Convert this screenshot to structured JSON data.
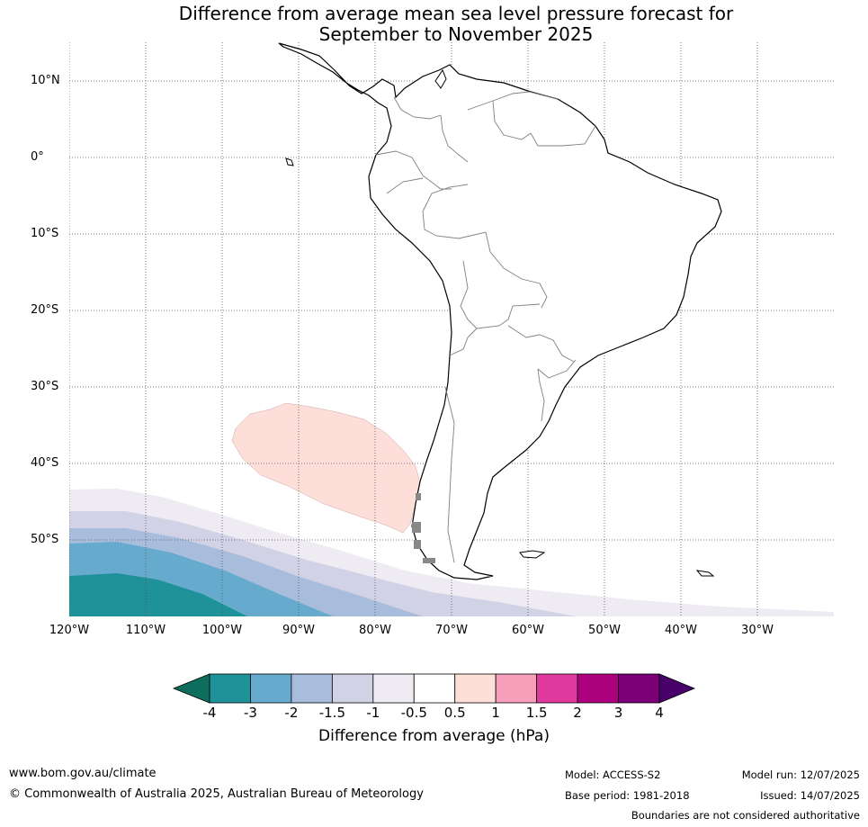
{
  "title": {
    "line1": "Difference from average mean sea level pressure forecast for",
    "line2": "September to November 2025"
  },
  "lat_labels": [
    "10°N",
    "0°",
    "10°S",
    "20°S",
    "30°S",
    "40°S",
    "50°S"
  ],
  "lon_labels": [
    "120°W",
    "110°W",
    "100°W",
    "90°W",
    "80°W",
    "70°W",
    "60°W",
    "50°W",
    "40°W",
    "30°W"
  ],
  "colorbar": {
    "ticks": [
      "-4",
      "-3",
      "-2",
      "-1.5",
      "-1",
      "-0.5",
      "0.5",
      "1",
      "1.5",
      "2",
      "3",
      "4"
    ],
    "colors": [
      "#0e6e5e",
      "#1e9199",
      "#66aace",
      "#a8bcdc",
      "#d2d2e6",
      "#efebf2",
      "#ffffff",
      "#fdded9",
      "#f79fba",
      "#e03a9e",
      "#ad007e",
      "#7b0077",
      "#4a006b"
    ],
    "label": "Difference from average (hPa)"
  },
  "footer": {
    "website": "www.bom.gov.au/climate",
    "copyright": "© Commonwealth of Australia 2025, Australian Bureau of Meteorology",
    "model": "Model: ACCESS-S2",
    "base_period": "Base period: 1981-2018",
    "model_run": "Model run: 12/07/2025",
    "issued": "Issued: 14/07/2025",
    "disclaimer": "Boundaries are not considered authoritative"
  }
}
